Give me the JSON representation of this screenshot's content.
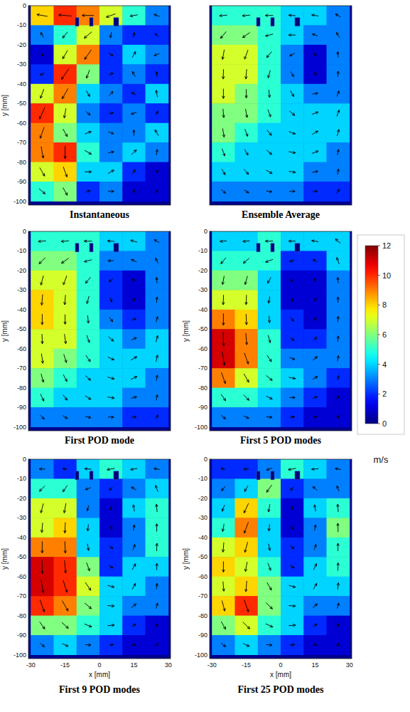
{
  "chart_data": [
    {
      "type": "heatmap",
      "title": "Instantaneous",
      "y_label": "y [mm]",
      "xlim": [
        -31,
        31
      ],
      "ylim": [
        -102,
        0
      ],
      "xticks": [
        -30,
        -15,
        0,
        15,
        30
      ],
      "yticks": [
        0,
        -10,
        -20,
        -30,
        -40,
        -50,
        -60,
        -70,
        -80,
        -90,
        -100
      ],
      "tick_labels": "y",
      "cells": [
        [
          8,
          10,
          9,
          7,
          5,
          3
        ],
        [
          3,
          5,
          7,
          3,
          2,
          2
        ],
        [
          1,
          7,
          9,
          2,
          4,
          3
        ],
        [
          2,
          10,
          6,
          2,
          3,
          2
        ],
        [
          7,
          9,
          4,
          3,
          2,
          4
        ],
        [
          10,
          7,
          3,
          2,
          3,
          2
        ],
        [
          9,
          6,
          4,
          3,
          3,
          4
        ],
        [
          9,
          10,
          5,
          3,
          4,
          3
        ],
        [
          7,
          8,
          4,
          4,
          2,
          1
        ],
        [
          5,
          6,
          2,
          3,
          1,
          1
        ]
      ],
      "angles": [
        [
          170,
          175,
          180,
          200,
          190,
          160
        ],
        [
          120,
          230,
          220,
          260,
          80,
          140
        ],
        [
          300,
          240,
          235,
          330,
          60,
          200
        ],
        [
          200,
          235,
          250,
          20,
          120,
          90
        ],
        [
          250,
          240,
          300,
          45,
          150,
          100
        ],
        [
          245,
          260,
          320,
          10,
          200,
          60
        ],
        [
          250,
          300,
          20,
          340,
          90,
          120
        ],
        [
          280,
          270,
          330,
          10,
          45,
          80
        ],
        [
          300,
          290,
          0,
          30,
          60,
          30
        ],
        [
          320,
          300,
          20,
          0,
          90,
          60
        ]
      ]
    },
    {
      "type": "heatmap",
      "title": "Ensemble Average",
      "xlim": [
        -31,
        31
      ],
      "ylim": [
        -102,
        0
      ],
      "xticks": [
        -30,
        -15,
        0,
        15,
        30
      ],
      "yticks": [
        0,
        -10,
        -20,
        -30,
        -40,
        -50,
        -60,
        -70,
        -80,
        -90,
        -100
      ],
      "tick_labels": false,
      "cells": [
        [
          5,
          5,
          5,
          4,
          4,
          3
        ],
        [
          6,
          6,
          5,
          4,
          3,
          3
        ],
        [
          7,
          7,
          5,
          3,
          1,
          3
        ],
        [
          7,
          7,
          5,
          3,
          1,
          3
        ],
        [
          7,
          6,
          5,
          4,
          3,
          3
        ],
        [
          6,
          6,
          5,
          4,
          4,
          4
        ],
        [
          6,
          5,
          4,
          4,
          4,
          4
        ],
        [
          5,
          4,
          4,
          4,
          4,
          3
        ],
        [
          4,
          4,
          4,
          4,
          3,
          3
        ],
        [
          3,
          3,
          3,
          3,
          2,
          2
        ]
      ],
      "angles": [
        [
          185,
          185,
          180,
          175,
          170,
          150
        ],
        [
          230,
          215,
          195,
          180,
          160,
          120
        ],
        [
          260,
          250,
          230,
          210,
          150,
          95
        ],
        [
          268,
          265,
          255,
          300,
          30,
          85
        ],
        [
          270,
          270,
          275,
          300,
          10,
          70
        ],
        [
          275,
          280,
          290,
          320,
          20,
          70
        ],
        [
          280,
          290,
          310,
          340,
          30,
          75
        ],
        [
          290,
          300,
          320,
          350,
          20,
          80
        ],
        [
          300,
          310,
          330,
          350,
          10,
          80
        ],
        [
          320,
          330,
          350,
          0,
          5,
          60
        ]
      ]
    },
    {
      "type": "heatmap",
      "title": "First POD mode",
      "y_label": "y [mm]",
      "xlim": [
        -31,
        31
      ],
      "ylim": [
        -102,
        0
      ],
      "xticks": [
        -30,
        -15,
        0,
        15,
        30
      ],
      "yticks": [
        0,
        -10,
        -20,
        -30,
        -40,
        -50,
        -60,
        -70,
        -80,
        -90,
        -100
      ],
      "tick_labels": "y",
      "cells": [
        [
          5,
          5,
          5,
          4,
          4,
          3
        ],
        [
          6,
          6,
          5,
          3,
          3,
          3
        ],
        [
          7,
          7,
          5,
          2,
          1,
          3
        ],
        [
          8,
          7,
          5,
          2,
          1,
          3
        ],
        [
          8,
          7,
          5,
          3,
          2,
          3
        ],
        [
          7,
          7,
          5,
          4,
          3,
          4
        ],
        [
          7,
          6,
          5,
          4,
          4,
          4
        ],
        [
          6,
          5,
          4,
          4,
          4,
          3
        ],
        [
          5,
          4,
          4,
          4,
          3,
          3
        ],
        [
          3,
          3,
          3,
          3,
          2,
          2
        ]
      ],
      "angles": [
        [
          185,
          185,
          180,
          175,
          165,
          150
        ],
        [
          225,
          215,
          195,
          180,
          155,
          115
        ],
        [
          255,
          250,
          230,
          215,
          150,
          95
        ],
        [
          265,
          265,
          255,
          290,
          40,
          85
        ],
        [
          270,
          270,
          275,
          305,
          20,
          75
        ],
        [
          272,
          278,
          290,
          320,
          25,
          75
        ],
        [
          278,
          288,
          305,
          335,
          30,
          78
        ],
        [
          285,
          298,
          318,
          345,
          25,
          80
        ],
        [
          295,
          308,
          328,
          350,
          15,
          80
        ],
        [
          315,
          328,
          348,
          358,
          5,
          60
        ]
      ]
    },
    {
      "type": "heatmap",
      "title": "First 5 POD modes",
      "y_label": "y [mm]",
      "xlim": [
        -31,
        31
      ],
      "ylim": [
        -102,
        0
      ],
      "xticks": [
        -30,
        -15,
        0,
        15,
        30
      ],
      "yticks": [
        0,
        -10,
        -20,
        -30,
        -40,
        -50,
        -60,
        -70,
        -80,
        -90,
        -100
      ],
      "tick_labels": "y",
      "cells": [
        [
          4,
          4,
          5,
          4,
          4,
          4
        ],
        [
          5,
          5,
          5,
          2,
          2,
          4
        ],
        [
          6,
          6,
          4,
          1,
          1,
          3
        ],
        [
          7,
          7,
          4,
          1,
          1,
          3
        ],
        [
          9,
          8,
          4,
          2,
          1,
          3
        ],
        [
          11,
          9,
          5,
          2,
          2,
          3
        ],
        [
          11,
          9,
          5,
          3,
          3,
          3
        ],
        [
          9,
          7,
          5,
          4,
          3,
          2
        ],
        [
          5,
          5,
          4,
          3,
          2,
          1
        ],
        [
          3,
          3,
          3,
          2,
          1,
          1
        ]
      ],
      "angles": [
        [
          185,
          185,
          180,
          180,
          170,
          140
        ],
        [
          230,
          220,
          200,
          200,
          150,
          110
        ],
        [
          260,
          255,
          240,
          230,
          120,
          95
        ],
        [
          268,
          268,
          260,
          290,
          60,
          90
        ],
        [
          270,
          272,
          275,
          310,
          40,
          85
        ],
        [
          272,
          275,
          285,
          320,
          40,
          85
        ],
        [
          280,
          290,
          305,
          340,
          40,
          80
        ],
        [
          290,
          300,
          320,
          350,
          30,
          70
        ],
        [
          305,
          315,
          335,
          0,
          20,
          60
        ],
        [
          320,
          335,
          355,
          10,
          20,
          50
        ]
      ],
      "colorbar": {
        "range": [
          0,
          12
        ],
        "ticks": [
          0,
          2,
          4,
          6,
          8,
          10,
          12
        ],
        "label": "m/s"
      }
    },
    {
      "type": "heatmap",
      "title": "First 9 POD modes",
      "x_label": "x [mm]",
      "y_label": "y [mm]",
      "xlim": [
        -31,
        31
      ],
      "ylim": [
        -102,
        0
      ],
      "xticks": [
        -30,
        -15,
        0,
        15,
        30
      ],
      "yticks": [
        0,
        -10,
        -20,
        -30,
        -40,
        -50,
        -60,
        -70,
        -80,
        -90,
        -100
      ],
      "cells": [
        [
          3,
          2,
          4,
          5,
          4,
          3
        ],
        [
          5,
          5,
          3,
          2,
          3,
          4
        ],
        [
          7,
          7,
          3,
          1,
          4,
          5
        ],
        [
          7,
          8,
          4,
          1,
          3,
          5
        ],
        [
          9,
          9,
          4,
          2,
          3,
          5
        ],
        [
          11,
          10,
          6,
          2,
          4,
          4
        ],
        [
          11,
          10,
          7,
          4,
          4,
          3
        ],
        [
          10,
          9,
          6,
          4,
          3,
          3
        ],
        [
          6,
          6,
          5,
          4,
          2,
          1
        ],
        [
          3,
          4,
          3,
          2,
          1,
          1
        ]
      ],
      "angles": [
        [
          180,
          170,
          175,
          190,
          190,
          170
        ],
        [
          225,
          235,
          200,
          230,
          150,
          110
        ],
        [
          255,
          260,
          255,
          250,
          100,
          95
        ],
        [
          265,
          268,
          265,
          300,
          80,
          90
        ],
        [
          270,
          272,
          280,
          320,
          70,
          88
        ],
        [
          272,
          275,
          290,
          330,
          60,
          88
        ],
        [
          280,
          288,
          305,
          345,
          60,
          85
        ],
        [
          290,
          300,
          320,
          355,
          40,
          75
        ],
        [
          305,
          318,
          338,
          5,
          30,
          60
        ],
        [
          320,
          335,
          355,
          10,
          20,
          50
        ]
      ]
    },
    {
      "type": "heatmap",
      "title": "First 25 POD modes",
      "x_label": "x [mm]",
      "y_label": "y [mm]",
      "xlim": [
        -31,
        31
      ],
      "ylim": [
        -102,
        0
      ],
      "xticks": [
        -30,
        -15,
        0,
        15,
        30
      ],
      "yticks": [
        0,
        -10,
        -20,
        -30,
        -40,
        -50,
        -60,
        -70,
        -80,
        -90,
        -100
      ],
      "cells": [
        [
          2,
          2,
          3,
          5,
          4,
          3
        ],
        [
          3,
          4,
          6,
          2,
          3,
          3
        ],
        [
          4,
          8,
          5,
          1,
          4,
          5
        ],
        [
          5,
          9,
          4,
          1,
          3,
          6
        ],
        [
          7,
          8,
          4,
          2,
          3,
          5
        ],
        [
          8,
          7,
          5,
          2,
          4,
          5
        ],
        [
          7,
          8,
          6,
          4,
          4,
          4
        ],
        [
          8,
          10,
          6,
          4,
          3,
          3
        ],
        [
          6,
          7,
          5,
          4,
          2,
          1
        ],
        [
          3,
          4,
          3,
          2,
          1,
          1
        ]
      ],
      "angles": [
        [
          170,
          180,
          200,
          190,
          185,
          170
        ],
        [
          230,
          240,
          235,
          230,
          140,
          110
        ],
        [
          250,
          245,
          260,
          250,
          100,
          95
        ],
        [
          260,
          250,
          265,
          300,
          80,
          92
        ],
        [
          265,
          255,
          280,
          320,
          70,
          90
        ],
        [
          270,
          260,
          290,
          330,
          65,
          88
        ],
        [
          275,
          265,
          300,
          345,
          60,
          85
        ],
        [
          285,
          290,
          315,
          355,
          40,
          75
        ],
        [
          300,
          315,
          335,
          5,
          30,
          60
        ],
        [
          320,
          335,
          355,
          10,
          20,
          50
        ]
      ]
    }
  ]
}
